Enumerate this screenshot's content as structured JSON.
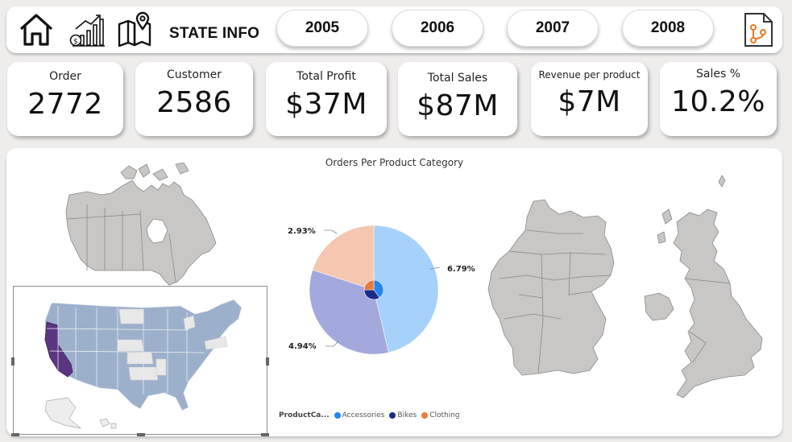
{
  "header": {
    "state_info_label": "STATE INFO",
    "nav_icons": [
      "home-icon",
      "sales-chart-icon",
      "map-pin-icon"
    ],
    "report_icon": "report-file-icon",
    "years": [
      "2005",
      "2006",
      "2007",
      "2008"
    ]
  },
  "kpis": [
    {
      "label": "Order",
      "value": "2772"
    },
    {
      "label": "Customer",
      "value": "2586"
    },
    {
      "label": "Total Profit",
      "value": "$37M"
    },
    {
      "label": "Total Sales",
      "value": "$87M"
    },
    {
      "label": "Revenue per product",
      "value": "$7M"
    },
    {
      "label": "Sales %",
      "value": "10.2%"
    }
  ],
  "chart_data": {
    "type": "pie",
    "title": "Orders Per Product Category",
    "legend_title": "ProductCa...",
    "legend_position": "bottom-left",
    "categories": [
      "Accessories",
      "Bikes",
      "Clothing"
    ],
    "colors": [
      "#2586ee",
      "#1b2a8a",
      "#e87a40"
    ],
    "outer_ring": {
      "slice_colors": [
        "#a5d1fb",
        "#a3a9dc",
        "#f5c6b0"
      ],
      "slice_labels": [
        "6.79%",
        "4.94%",
        "2.93%"
      ],
      "slice_values": [
        6.79,
        4.94,
        2.93
      ]
    },
    "inner_ring": {
      "slice_colors": [
        "#2586ee",
        "#1b2a8a",
        "#e87a40"
      ],
      "slice_values": [
        40,
        35,
        25
      ]
    }
  },
  "maps": {
    "highlight_color": "#5a3580",
    "base_color": "#9db0cb",
    "neutral_color": "#c9c7c5"
  }
}
